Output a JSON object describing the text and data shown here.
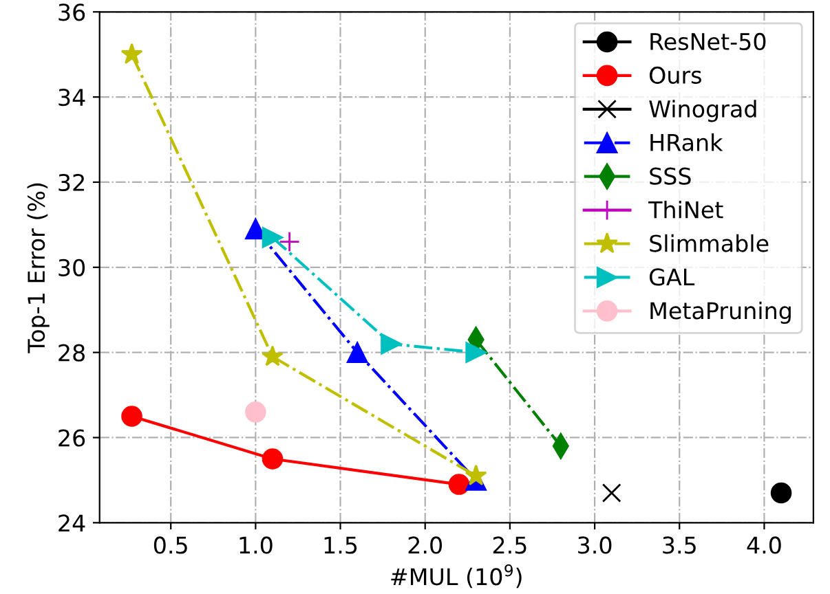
{
  "chart_data": {
    "type": "line",
    "xlabel": "#MUL (10$^{9}$)",
    "ylabel": "Top-1 Error (%)",
    "xlim": [
      0.08,
      4.29
    ],
    "ylim": [
      24,
      36
    ],
    "xticks": [
      {
        "value": 0.5,
        "label": "0.5"
      },
      {
        "value": 1.0,
        "label": "1.0"
      },
      {
        "value": 1.5,
        "label": "1.5"
      },
      {
        "value": 2.0,
        "label": "2.0"
      },
      {
        "value": 2.5,
        "label": "2.5"
      },
      {
        "value": 3.0,
        "label": "3.0"
      },
      {
        "value": 3.5,
        "label": "3.5"
      },
      {
        "value": 4.0,
        "label": "4.0"
      }
    ],
    "yticks": [
      24,
      26,
      28,
      30,
      32,
      34,
      36
    ],
    "grid": true,
    "legend": "top right",
    "series": [
      {
        "name": "ResNet-50",
        "color": "#000000",
        "marker": "circle",
        "line_style": "solid",
        "x": [
          4.1
        ],
        "values": [
          24.7
        ]
      },
      {
        "name": "Ours",
        "color": "#ff0000",
        "marker": "circle",
        "line_style": "solid",
        "x": [
          0.27,
          1.1,
          2.2
        ],
        "values": [
          26.5,
          25.5,
          24.9
        ]
      },
      {
        "name": "Winograd",
        "color": "#000000",
        "marker": "cross",
        "line_style": "solid",
        "x": [
          3.1
        ],
        "values": [
          24.7
        ]
      },
      {
        "name": "HRank",
        "color": "#0000ff",
        "marker": "triangle",
        "line_style": "dashdot",
        "x": [
          1.0,
          1.6,
          2.3
        ],
        "values": [
          30.9,
          28.0,
          25.0
        ]
      },
      {
        "name": "SSS",
        "color": "#008000",
        "marker": "diamond",
        "line_style": "dashdot",
        "x": [
          2.3,
          2.8
        ],
        "values": [
          28.3,
          25.8
        ]
      },
      {
        "name": "ThiNet",
        "color": "#bf00bf",
        "marker": "plus",
        "line_style": "solid",
        "x": [
          1.2
        ],
        "values": [
          30.6
        ]
      },
      {
        "name": "Slimmable",
        "color": "#bfbf00",
        "marker": "star",
        "line_style": "dashdot",
        "x": [
          0.27,
          1.1,
          2.3
        ],
        "values": [
          35.0,
          27.9,
          25.1
        ]
      },
      {
        "name": "GAL",
        "color": "#00bfbf",
        "marker": "triangle-right",
        "line_style": "dashdot",
        "x": [
          1.1,
          1.8,
          2.3
        ],
        "values": [
          30.7,
          28.2,
          28.0
        ]
      },
      {
        "name": "MetaPruning",
        "color": "#ffc0cb",
        "marker": "circle",
        "line_style": "solid",
        "x": [
          1.0
        ],
        "values": [
          26.6
        ]
      }
    ]
  }
}
